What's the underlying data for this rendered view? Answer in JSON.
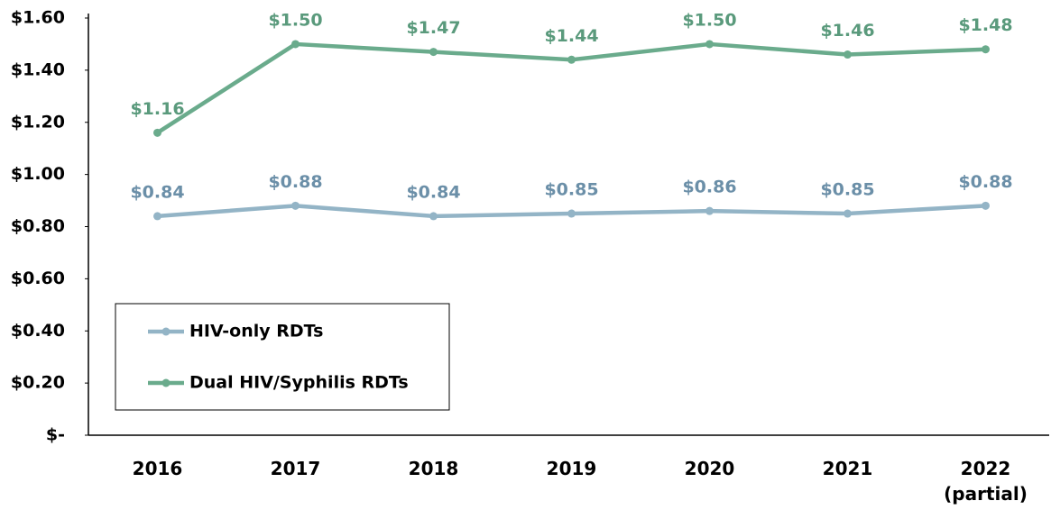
{
  "chart_data": {
    "type": "line",
    "categories": [
      "2016",
      "2017",
      "2018",
      "2019",
      "2020",
      "2021",
      "2022 (partial)"
    ],
    "series": [
      {
        "name": "HIV-only RDTs",
        "color": "#93b4c6",
        "label_color": "#6b8fa8",
        "values": [
          0.84,
          0.88,
          0.84,
          0.85,
          0.86,
          0.85,
          0.88
        ],
        "value_labels": [
          "$0.84",
          "$0.88",
          "$0.84",
          "$0.85",
          "$0.86",
          "$0.85",
          "$0.88"
        ]
      },
      {
        "name": "Dual HIV/Syphilis RDTs",
        "color": "#6aab8c",
        "label_color": "#5a9a7c",
        "values": [
          1.16,
          1.5,
          1.47,
          1.44,
          1.5,
          1.46,
          1.48
        ],
        "value_labels": [
          "$1.16",
          "$1.50",
          "$1.47",
          "$1.44",
          "$1.50",
          "$1.46",
          "$1.48"
        ]
      }
    ],
    "ylim": [
      0,
      1.6
    ],
    "yticks": [
      {
        "value": 0,
        "label": "$-"
      },
      {
        "value": 0.2,
        "label": "$0.20"
      },
      {
        "value": 0.4,
        "label": "$0.40"
      },
      {
        "value": 0.6,
        "label": "$0.60"
      },
      {
        "value": 0.8,
        "label": "$0.80"
      },
      {
        "value": 1.0,
        "label": "$1.00"
      },
      {
        "value": 1.2,
        "label": "$1.20"
      },
      {
        "value": 1.4,
        "label": "$1.40"
      },
      {
        "value": 1.6,
        "label": "$1.60"
      }
    ],
    "grid": false,
    "legend": "lower left"
  }
}
